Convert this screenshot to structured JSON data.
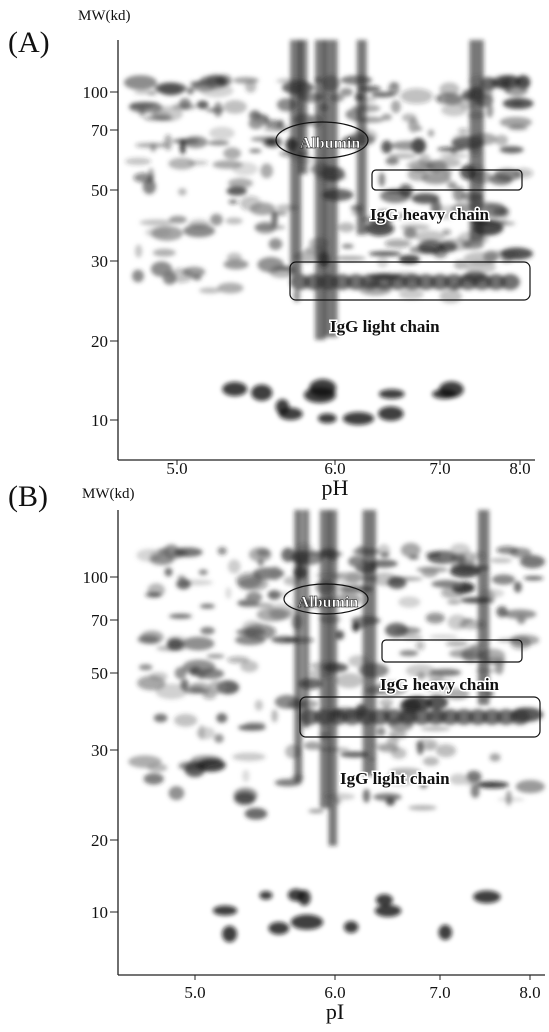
{
  "panels": [
    {
      "label": "(A)",
      "y_axis_label": "MW(kd)",
      "y_ticks": [
        "100",
        "70",
        "50",
        "30",
        "20",
        "10"
      ],
      "x_ticks": [
        "5.0",
        "6.0",
        "7.0",
        "8.0"
      ],
      "x_axis_label": "pH",
      "annotations": [
        "Albumin",
        "IgG heavy chain",
        "IgG light chain"
      ]
    },
    {
      "label": "(B)",
      "y_axis_label": "MW(kd)",
      "y_ticks": [
        "100",
        "70",
        "50",
        "30",
        "20",
        "10"
      ],
      "x_ticks": [
        "5.0",
        "6.0",
        "7.0",
        "8.0"
      ],
      "x_axis_label": "pI",
      "annotations": [
        "Albumin",
        "IgG heavy chain",
        "IgG light chain"
      ]
    }
  ]
}
